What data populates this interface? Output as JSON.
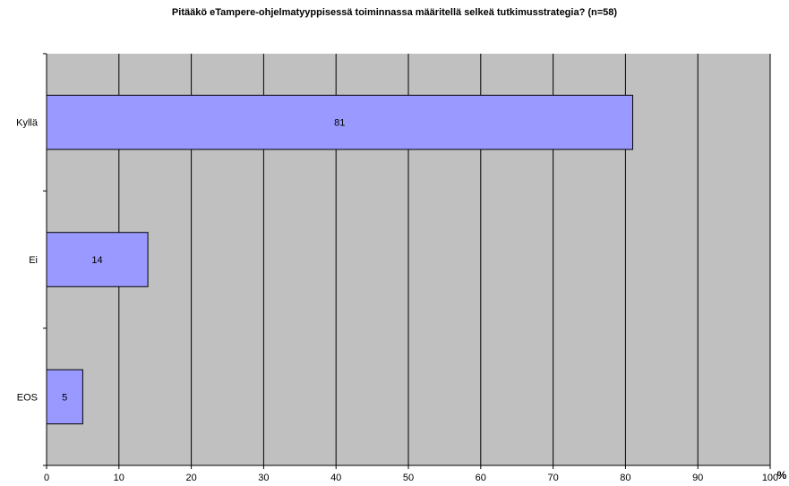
{
  "chart_data": {
    "type": "bar",
    "orientation": "horizontal",
    "title": "Pitääkö eTampere-ohjelmatyyppisessä toiminnassa määritellä selkeä tutkimusstrategia? (n=58)",
    "categories": [
      "Kyllä",
      "Ei",
      "EOS"
    ],
    "values": [
      81,
      14,
      5
    ],
    "data_labels": [
      "81",
      "14",
      "5"
    ],
    "xlim": [
      0,
      100
    ],
    "x_ticks": [
      0,
      10,
      20,
      30,
      40,
      50,
      60,
      70,
      80,
      90,
      100
    ],
    "x_unit": "%",
    "grid": true,
    "legend": "none",
    "colors": {
      "plot_background": "#c0c0c0",
      "bar_fill": "#9999ff",
      "bar_stroke": "#000000",
      "grid": "#000000"
    }
  }
}
